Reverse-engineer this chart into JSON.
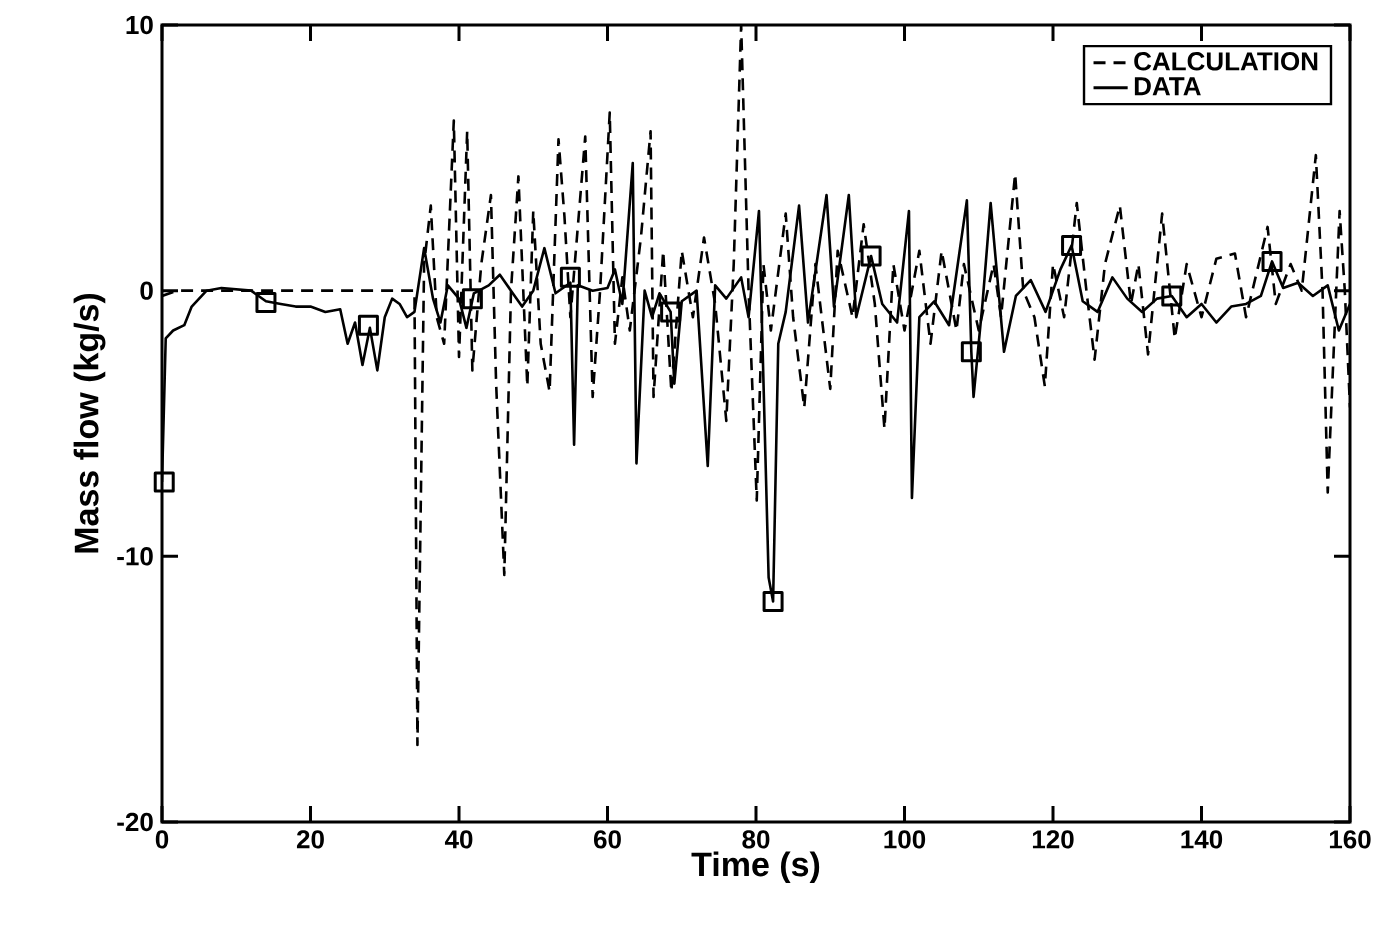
{
  "chart_data": {
    "type": "line",
    "xlabel": "Time (s)",
    "ylabel": "Mass flow (kg/s)",
    "xlim": [
      0,
      160
    ],
    "ylim": [
      -20,
      10
    ],
    "xticks": [
      0,
      20,
      40,
      60,
      80,
      100,
      120,
      140,
      160
    ],
    "yticks": [
      -20,
      -10,
      0,
      10
    ],
    "legend": "top right",
    "series": [
      {
        "name": "CALCULATION",
        "color": "#000000",
        "line_style": "dashed",
        "x": [
          0,
          2,
          34,
          34.4,
          35.3,
          36.2,
          37,
          38,
          39.3,
          40,
          41.1,
          41.8,
          43,
          44.3,
          45,
          46.1,
          47,
          48,
          49.2,
          50,
          51,
          52.2,
          53.4,
          54.2,
          55,
          57,
          58,
          59,
          60.3,
          61,
          62,
          63,
          64.5,
          65.8,
          66.2,
          67.5,
          68.6,
          70,
          71.5,
          73,
          74.5,
          76,
          77,
          78,
          79,
          80.1,
          81,
          82,
          84,
          85,
          86.5,
          88,
          90,
          91,
          93,
          94.5,
          96,
          97.3,
          98.5,
          100,
          102,
          103.5,
          105,
          107,
          108,
          110,
          112,
          113,
          114.9,
          116,
          117.5,
          118.9,
          120,
          121.5,
          123.2,
          124.5,
          125.6,
          127,
          129,
          130.5,
          131.5,
          132.8,
          134.7,
          136.4,
          138,
          140,
          142,
          144.5,
          146,
          148.9,
          150,
          152,
          153.5,
          155.4,
          156.3,
          157,
          158.6,
          159.3,
          160
        ],
        "values": [
          -0.2,
          0,
          0,
          -17.1,
          1,
          3.2,
          -1,
          -2,
          6.4,
          -2.5,
          6.0,
          -3,
          1,
          3.6,
          -3.5,
          -10.7,
          0,
          4.3,
          -3.6,
          3,
          -2,
          -3.8,
          5.7,
          2.8,
          -1,
          5.8,
          -4.0,
          0,
          6.7,
          -2,
          0.5,
          -1.5,
          2,
          6.0,
          -4.0,
          1.5,
          -3.8,
          1.5,
          -1,
          2,
          -0.5,
          -4.9,
          1,
          10,
          0,
          -7.9,
          1,
          -1.5,
          2.9,
          -1,
          -4.4,
          1,
          -3.7,
          1.5,
          -1,
          2.5,
          -0.5,
          -5.2,
          1,
          -1.5,
          1.5,
          -2,
          1.5,
          -1.5,
          1,
          -1.5,
          1,
          -1,
          4.4,
          0,
          -1,
          -3.6,
          1,
          -1,
          3.3,
          0,
          -2.6,
          1,
          3.2,
          -0.5,
          1,
          -2.4,
          2.9,
          -1.8,
          1,
          -1,
          1.2,
          1.4,
          -1,
          2.4,
          -0.5,
          1,
          0,
          5.1,
          0,
          -7.6,
          3.0,
          0,
          -4.4
        ]
      },
      {
        "name": "DATA",
        "color": "#000000",
        "line_style": "solid",
        "x": [
          0,
          0.5,
          1.5,
          3,
          4,
          6,
          8,
          12,
          14,
          16,
          18,
          20,
          22,
          24,
          25,
          26,
          27,
          28,
          29,
          30,
          31,
          32,
          33,
          34,
          35.3,
          36.5,
          37.5,
          38.5,
          40,
          41,
          42,
          44,
          45.5,
          47,
          48.5,
          50,
          51.5,
          53,
          55,
          55.5,
          56,
          58,
          60,
          61,
          62,
          63.4,
          63.9,
          65,
          66,
          67,
          68.5,
          69,
          70,
          72,
          73.5,
          74.5,
          76,
          78,
          79,
          80.4,
          81.7,
          82.3,
          83,
          84,
          85.8,
          87,
          89.5,
          90.5,
          92.5,
          93.5,
          95.5,
          97,
          99,
          100.6,
          101,
          102,
          104,
          106,
          108.4,
          109,
          109.3,
          110.5,
          111.6,
          113.4,
          115,
          117,
          119,
          121,
          122.5,
          124,
          126,
          128,
          130,
          132,
          134,
          136,
          138,
          140,
          142,
          144,
          146,
          148,
          149.5,
          151,
          153,
          155,
          157,
          158.5,
          160
        ],
        "values": [
          -7.2,
          -1.8,
          -1.5,
          -1.3,
          -0.6,
          0,
          0.1,
          0,
          -0.4,
          -0.5,
          -0.6,
          -0.6,
          -0.8,
          -0.7,
          -2.0,
          -1.2,
          -2.8,
          -1.4,
          -3.0,
          -1.0,
          -0.3,
          -0.5,
          -1.0,
          -0.8,
          1.6,
          -0.3,
          -1.2,
          0.2,
          -0.3,
          -1.4,
          -0.1,
          0.2,
          0.6,
          0,
          -0.6,
          0,
          1.6,
          -0.1,
          0.3,
          -5.8,
          0.2,
          0,
          0.1,
          0.8,
          -0.5,
          4.8,
          -6.5,
          0,
          -1,
          -0.1,
          -0.8,
          -3.5,
          -0.4,
          0,
          -6.6,
          0.2,
          -0.3,
          0.5,
          -1,
          3,
          -10.8,
          -11.7,
          -2,
          -0.8,
          3.2,
          -1.2,
          3.6,
          -0.6,
          3.6,
          -1,
          1.3,
          -0.5,
          -1.2,
          3.0,
          -7.8,
          -1,
          -0.4,
          -1.3,
          3.4,
          -2.3,
          -4.0,
          -0.5,
          3.3,
          -2.3,
          -0.2,
          0.4,
          -0.8,
          0.8,
          1.7,
          -0.4,
          -0.8,
          0.5,
          -0.3,
          -0.8,
          -0.3,
          -0.2,
          -1,
          -0.5,
          -1.2,
          -0.6,
          -0.5,
          -0.2,
          1.1,
          0.1,
          0.3,
          -0.2,
          0.2,
          -1.5,
          -0.5
        ]
      },
      {
        "type": "scatter",
        "color": "#000000",
        "marker": "square",
        "x": [
          0.3,
          14,
          27.8,
          41.8,
          55,
          68.5,
          82.3,
          95.5,
          109,
          122.5,
          136,
          149.5
        ],
        "values": [
          -7.2,
          -0.45,
          -1.3,
          -0.3,
          0.5,
          -0.8,
          -11.7,
          1.3,
          -2.3,
          1.7,
          -0.2,
          1.1
        ]
      }
    ]
  }
}
